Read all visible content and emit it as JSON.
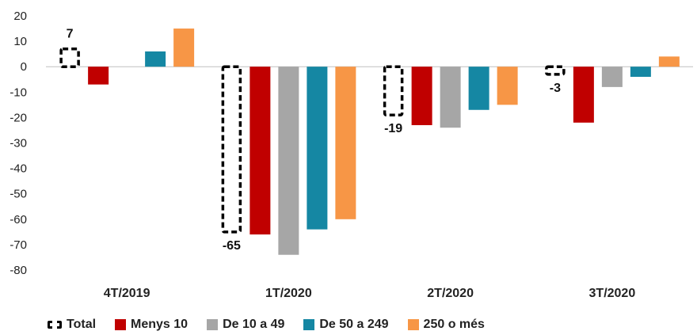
{
  "chart_data": {
    "type": "bar",
    "categories": [
      "4T/2019",
      "1T/2020",
      "2T/2020",
      "3T/2020"
    ],
    "series": [
      {
        "name": "Total",
        "values": [
          7,
          -65,
          -19,
          -3
        ],
        "color": "#000000",
        "style": "dashed-outline",
        "labels": [
          "7",
          "-65",
          "-19",
          "-3"
        ]
      },
      {
        "name": "Menys 10",
        "values": [
          -7,
          -66,
          -23,
          -22
        ],
        "color": "#C00000"
      },
      {
        "name": "De 10 a 49",
        "values": [
          0,
          -74,
          -24,
          -8
        ],
        "color": "#A6A6A6"
      },
      {
        "name": "De 50 a 249",
        "values": [
          6,
          -64,
          -17,
          -4
        ],
        "color": "#1587A3"
      },
      {
        "name": "250 o més",
        "values": [
          15,
          -60,
          -15,
          4
        ],
        "color": "#F79646"
      }
    ],
    "ylim": [
      -80,
      20
    ],
    "yticks": [
      "20",
      "10",
      "0",
      "-10",
      "-20",
      "-30",
      "-40",
      "-50",
      "-60",
      "-70",
      "-80"
    ],
    "legend_position": "bottom",
    "grid": false
  }
}
